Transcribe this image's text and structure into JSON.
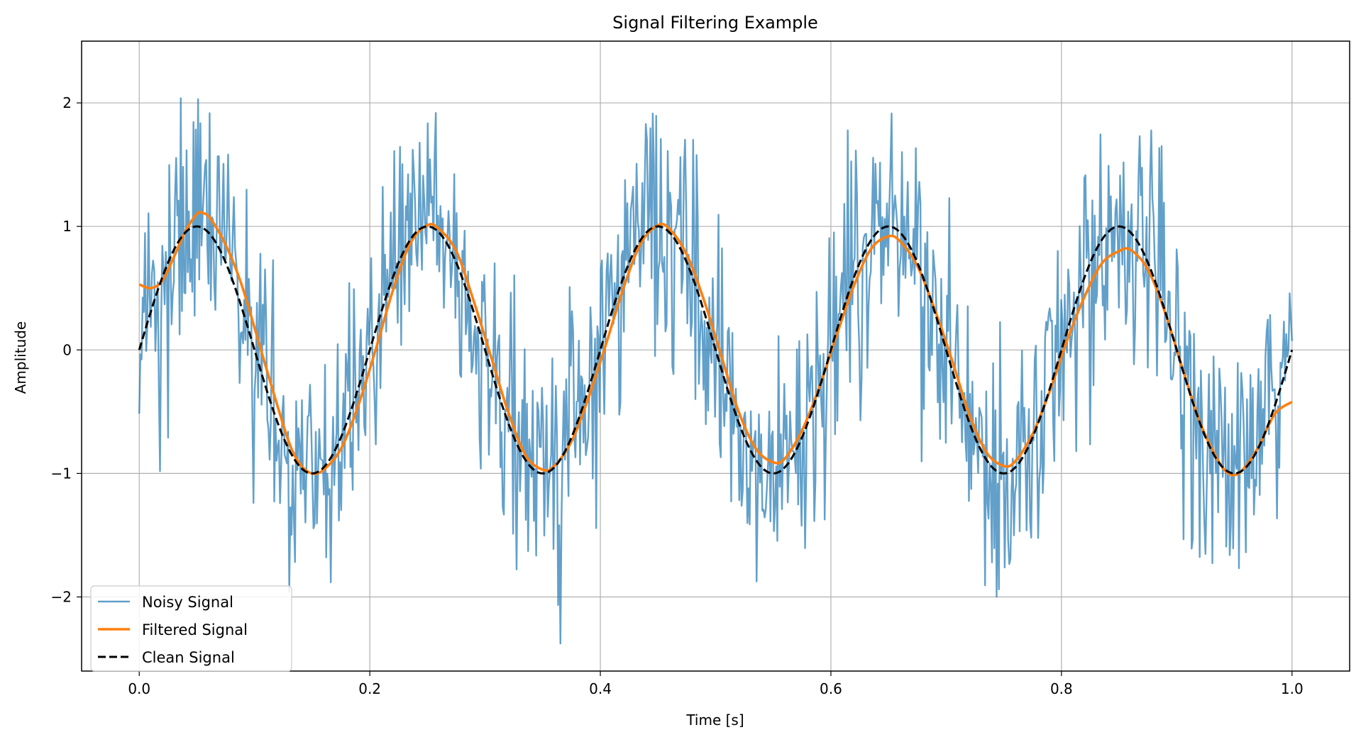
{
  "chart_data": {
    "type": "line",
    "title": "Signal Filtering Example",
    "xlabel": "Time [s]",
    "ylabel": "Amplitude",
    "xlim": [
      -0.05,
      1.05
    ],
    "ylim": [
      -2.6,
      2.5
    ],
    "xticks": [
      0.0,
      0.2,
      0.4,
      0.6,
      0.8,
      1.0
    ],
    "xtick_labels": [
      "0.0",
      "0.2",
      "0.4",
      "0.6",
      "0.8",
      "1.0"
    ],
    "yticks": [
      -2,
      -1,
      0,
      1,
      2
    ],
    "ytick_labels": [
      "−2",
      "−1",
      "0",
      "1",
      "2"
    ],
    "grid": true,
    "legend_position": "lower-left",
    "signal_frequency_hz": 5,
    "series": [
      {
        "name": "Noisy Signal",
        "color": "#1f77b4",
        "alpha": 0.7,
        "style": "solid",
        "description": "clean sine plus random noise (noise std about 0.5), 1000 samples",
        "noise_std": 0.5,
        "samples": 1000
      },
      {
        "name": "Filtered Signal",
        "color": "#ff7f0e",
        "style": "solid",
        "points": [
          [
            0.0,
            0.53
          ],
          [
            0.01,
            0.5
          ],
          [
            0.02,
            0.56
          ],
          [
            0.03,
            0.75
          ],
          [
            0.04,
            0.96
          ],
          [
            0.05,
            1.1
          ],
          [
            0.055,
            1.11
          ],
          [
            0.062,
            1.06
          ],
          [
            0.075,
            0.85
          ],
          [
            0.088,
            0.55
          ],
          [
            0.1,
            0.18
          ],
          [
            0.115,
            -0.3
          ],
          [
            0.13,
            -0.75
          ],
          [
            0.14,
            -0.93
          ],
          [
            0.15,
            -1.0
          ],
          [
            0.16,
            -0.97
          ],
          [
            0.175,
            -0.8
          ],
          [
            0.19,
            -0.45
          ],
          [
            0.205,
            0.0
          ],
          [
            0.22,
            0.48
          ],
          [
            0.235,
            0.86
          ],
          [
            0.25,
            1.01
          ],
          [
            0.26,
            0.98
          ],
          [
            0.275,
            0.8
          ],
          [
            0.29,
            0.4
          ],
          [
            0.305,
            -0.05
          ],
          [
            0.32,
            -0.5
          ],
          [
            0.335,
            -0.85
          ],
          [
            0.35,
            -0.97
          ],
          [
            0.36,
            -0.94
          ],
          [
            0.375,
            -0.74
          ],
          [
            0.39,
            -0.38
          ],
          [
            0.405,
            0.05
          ],
          [
            0.42,
            0.5
          ],
          [
            0.435,
            0.86
          ],
          [
            0.45,
            1.01
          ],
          [
            0.46,
            0.98
          ],
          [
            0.475,
            0.77
          ],
          [
            0.49,
            0.4
          ],
          [
            0.505,
            -0.05
          ],
          [
            0.52,
            -0.5
          ],
          [
            0.535,
            -0.8
          ],
          [
            0.55,
            -0.91
          ],
          [
            0.56,
            -0.88
          ],
          [
            0.575,
            -0.65
          ],
          [
            0.59,
            -0.3
          ],
          [
            0.605,
            0.12
          ],
          [
            0.62,
            0.52
          ],
          [
            0.635,
            0.82
          ],
          [
            0.65,
            0.92
          ],
          [
            0.66,
            0.88
          ],
          [
            0.675,
            0.68
          ],
          [
            0.69,
            0.33
          ],
          [
            0.705,
            -0.08
          ],
          [
            0.72,
            -0.52
          ],
          [
            0.735,
            -0.83
          ],
          [
            0.75,
            -0.94
          ],
          [
            0.76,
            -0.9
          ],
          [
            0.775,
            -0.68
          ],
          [
            0.79,
            -0.33
          ],
          [
            0.805,
            0.08
          ],
          [
            0.82,
            0.43
          ],
          [
            0.835,
            0.7
          ],
          [
            0.85,
            0.8
          ],
          [
            0.86,
            0.81
          ],
          [
            0.875,
            0.65
          ],
          [
            0.89,
            0.3
          ],
          [
            0.905,
            -0.15
          ],
          [
            0.92,
            -0.58
          ],
          [
            0.935,
            -0.88
          ],
          [
            0.945,
            -1.0
          ],
          [
            0.955,
            -0.99
          ],
          [
            0.97,
            -0.8
          ],
          [
            0.985,
            -0.52
          ],
          [
            1.0,
            -0.42
          ]
        ]
      },
      {
        "name": "Clean Signal",
        "color": "#000000",
        "style": "dashed",
        "function": "sin(2*pi*5*t)",
        "amplitude": 1
      }
    ]
  }
}
